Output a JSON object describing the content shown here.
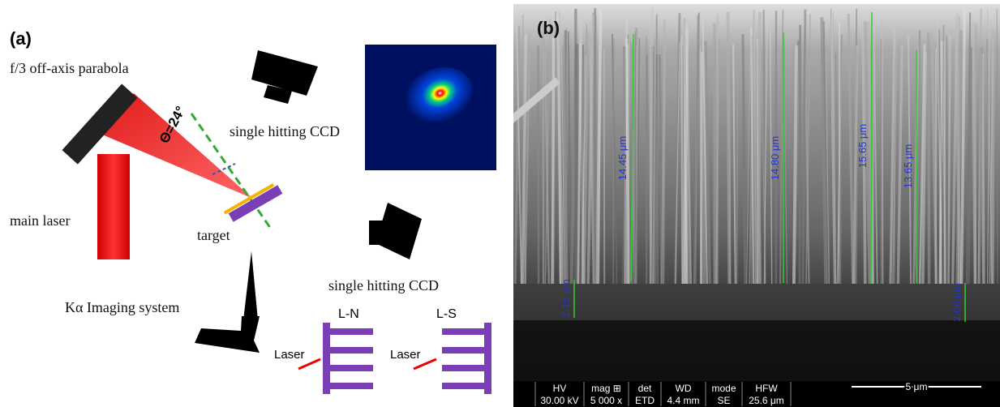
{
  "panel_a": {
    "label": "(a)",
    "parabola": "f/3 off-axis parabola",
    "angle": "Θ=24°",
    "ccd_top": "single hitting CCD",
    "main_laser": "main laser",
    "target": "target",
    "ccd_bottom": "single hitting CCD",
    "imaging": "Kα  Imaging system",
    "targets": [
      {
        "name": "L-N",
        "laser": "Laser"
      },
      {
        "name": "L-S",
        "laser": "Laser"
      }
    ]
  },
  "panel_b": {
    "label": "(b)",
    "measurements": [
      "14.45 μm",
      "14.80 μm",
      "15.65 μm",
      "13.65 μm",
      "2.15 μm",
      "2.00 μm"
    ],
    "info_bar": [
      {
        "header": "HV",
        "value": "30.00 kV"
      },
      {
        "header": "mag ⊞",
        "value": "5 000 x"
      },
      {
        "header": "det",
        "value": "ETD"
      },
      {
        "header": "WD",
        "value": "4.4 mm"
      },
      {
        "header": "mode",
        "value": "SE"
      },
      {
        "header": "HFW",
        "value": "25.6 μm"
      }
    ],
    "scale_bar": "5 μm"
  }
}
